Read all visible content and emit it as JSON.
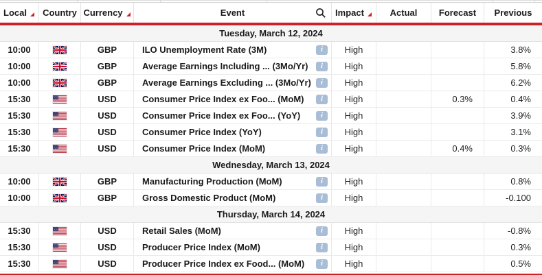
{
  "table": {
    "columns": [
      {
        "label": "Local",
        "sortable": true
      },
      {
        "label": "Country",
        "sortable": false
      },
      {
        "label": "Currency",
        "sortable": true
      },
      {
        "label": "Event",
        "sortable": false,
        "has_search_icon": true
      },
      {
        "label": "Impact",
        "sortable": true
      },
      {
        "label": "Actual",
        "sortable": false
      },
      {
        "label": "Forecast",
        "sortable": false
      },
      {
        "label": "Previous",
        "sortable": false
      }
    ],
    "info_icon_label": "i",
    "sections": [
      {
        "date": "Tuesday, March 12, 2024",
        "rows": [
          {
            "local": "10:00",
            "flag": "uk-flag",
            "currency": "GBP",
            "event": "ILO Unemployment Rate (3M)",
            "impact": "High",
            "actual": "",
            "forecast": "",
            "previous": "3.8%"
          },
          {
            "local": "10:00",
            "flag": "uk-flag",
            "currency": "GBP",
            "event": "Average Earnings Including ...   (3Mo/Yr)",
            "impact": "High",
            "actual": "",
            "forecast": "",
            "previous": "5.8%"
          },
          {
            "local": "10:00",
            "flag": "uk-flag",
            "currency": "GBP",
            "event": "Average Earnings Excluding ...   (3Mo/Yr)",
            "impact": "High",
            "actual": "",
            "forecast": "",
            "previous": "6.2%"
          },
          {
            "local": "15:30",
            "flag": "us-flag",
            "currency": "USD",
            "event": "Consumer Price Index ex Foo...  (MoM)",
            "impact": "High",
            "actual": "",
            "forecast": "0.3%",
            "previous": "0.4%"
          },
          {
            "local": "15:30",
            "flag": "us-flag",
            "currency": "USD",
            "event": "Consumer Price Index ex Foo...  (YoY)",
            "impact": "High",
            "actual": "",
            "forecast": "",
            "previous": "3.9%"
          },
          {
            "local": "15:30",
            "flag": "us-flag",
            "currency": "USD",
            "event": "Consumer Price Index (YoY)",
            "impact": "High",
            "actual": "",
            "forecast": "",
            "previous": "3.1%"
          },
          {
            "local": "15:30",
            "flag": "us-flag",
            "currency": "USD",
            "event": "Consumer Price Index (MoM)",
            "impact": "High",
            "actual": "",
            "forecast": "0.4%",
            "previous": "0.3%"
          }
        ]
      },
      {
        "date": "Wednesday, March 13, 2024",
        "rows": [
          {
            "local": "10:00",
            "flag": "uk-flag",
            "currency": "GBP",
            "event": "Manufacturing Production (MoM)",
            "impact": "High",
            "actual": "",
            "forecast": "",
            "previous": "0.8%"
          },
          {
            "local": "10:00",
            "flag": "uk-flag",
            "currency": "GBP",
            "event": "Gross Domestic Product (MoM)",
            "impact": "High",
            "actual": "",
            "forecast": "",
            "previous": "-0.100"
          }
        ]
      },
      {
        "date": "Thursday, March 14, 2024",
        "rows": [
          {
            "local": "15:30",
            "flag": "us-flag",
            "currency": "USD",
            "event": "Retail Sales (MoM)",
            "impact": "High",
            "actual": "",
            "forecast": "",
            "previous": "-0.8%"
          },
          {
            "local": "15:30",
            "flag": "us-flag",
            "currency": "USD",
            "event": "Producer Price Index (MoM)",
            "impact": "High",
            "actual": "",
            "forecast": "",
            "previous": "0.3%"
          },
          {
            "local": "15:30",
            "flag": "us-flag",
            "currency": "USD",
            "event": "Producer Price Index ex Food...  (MoM)",
            "impact": "High",
            "actual": "",
            "forecast": "",
            "previous": "0.5%"
          }
        ]
      }
    ]
  },
  "colors": {
    "accent_red": "#cc2127",
    "info_icon_bg": "#a9bdd6",
    "date_band_bg": "#f5f5f5",
    "border_gray": "#e8e8e8"
  }
}
